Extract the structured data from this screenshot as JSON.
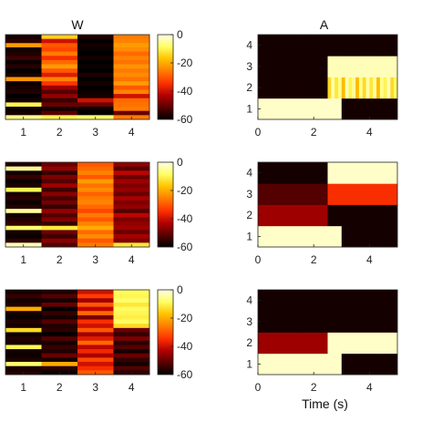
{
  "colors": {
    "colormap": [
      "#000000",
      "#5a0000",
      "#b40000",
      "#ff3200",
      "#ff7d00",
      "#ffc300",
      "#ffff64",
      "#fffde6"
    ]
  },
  "chart_data": [
    {
      "type": "heatmap",
      "name": "W-row-1",
      "title": "W",
      "x_ticks": [
        "1",
        "2",
        "3",
        "4"
      ],
      "cells": [
        [
          -58,
          -15,
          -57,
          -26
        ],
        [
          -56,
          -40,
          -60,
          -25
        ],
        [
          -22,
          -30,
          -58,
          -22
        ],
        [
          -58,
          -32,
          -59,
          -24
        ],
        [
          -57,
          -26,
          -60,
          -28
        ],
        [
          -54,
          -35,
          -58,
          -25
        ],
        [
          -59,
          -28,
          -60,
          -27
        ],
        [
          -56,
          -22,
          -59,
          -23
        ],
        [
          -60,
          -30,
          -60,
          -26
        ],
        [
          -58,
          -38,
          -57,
          -24
        ],
        [
          -23,
          -25,
          -60,
          -27
        ],
        [
          -59,
          -34,
          -58,
          -22
        ],
        [
          -58,
          -45,
          -60,
          -30
        ],
        [
          -57,
          -52,
          -59,
          -25
        ],
        [
          -60,
          -46,
          -58,
          -40
        ],
        [
          -58,
          -55,
          -40,
          -28
        ],
        [
          -10,
          -50,
          -50,
          -27
        ],
        [
          -59,
          -58,
          -59,
          -26
        ],
        [
          -58,
          -52,
          -60,
          -50
        ],
        [
          -6,
          -10,
          -8,
          -26
        ]
      ],
      "colorbar_ticks": [
        "0",
        "-20",
        "-40",
        "-60"
      ],
      "clim": [
        -60,
        0
      ]
    },
    {
      "type": "heatmap",
      "name": "A-row-1",
      "title": "A",
      "x_ticks": [
        "0",
        "2",
        "4"
      ],
      "y_ticks": [
        "1",
        "2",
        "3",
        "4"
      ],
      "xlim": [
        0,
        5
      ],
      "cells": [
        [
          -2,
          -2,
          -2,
          -2,
          -2,
          -2,
          -2,
          -2,
          -2,
          -2,
          -2,
          -2,
          -2,
          -2,
          -2,
          -2,
          -2,
          -2,
          -2,
          -2,
          -2,
          -2,
          -2,
          -2,
          -58,
          -58,
          -58,
          -58,
          -58,
          -58,
          -58,
          -58,
          -58,
          -58,
          -58,
          -58,
          -58,
          -58,
          -58,
          -58
        ],
        [
          -58,
          -58,
          -58,
          -58,
          -58,
          -58,
          -58,
          -58,
          -58,
          -58,
          -58,
          -58,
          -58,
          -58,
          -58,
          -58,
          -58,
          -58,
          -58,
          -58,
          -14,
          -4,
          -12,
          -6,
          -18,
          -3,
          -10,
          -5,
          -18,
          -6,
          -14,
          -4,
          -12,
          -4,
          -18,
          -6,
          -10,
          -3,
          -14,
          -8
        ],
        [
          -58,
          -58,
          -58,
          -58,
          -58,
          -58,
          -58,
          -58,
          -58,
          -58,
          -58,
          -58,
          -58,
          -58,
          -58,
          -58,
          -58,
          -58,
          -58,
          -58,
          -3,
          -3,
          -3,
          -3,
          -3,
          -3,
          -3,
          -3,
          -3,
          -3,
          -3,
          -3,
          -3,
          -3,
          -3,
          -3,
          -3,
          -3,
          -3,
          -3
        ],
        [
          -58,
          -58,
          -58,
          -58,
          -58,
          -58,
          -58,
          -58,
          -58,
          -58,
          -58,
          -58,
          -58,
          -58,
          -58,
          -58,
          -58,
          -58,
          -58,
          -58,
          -58,
          -58,
          -58,
          -58,
          -58,
          -58,
          -58,
          -58,
          -58,
          -58,
          -58,
          -58,
          -58,
          -58,
          -58,
          -58,
          -58,
          -58,
          -58,
          -58
        ]
      ]
    },
    {
      "type": "heatmap",
      "name": "W-row-2",
      "x_ticks": [
        "1",
        "2",
        "3",
        "4"
      ],
      "cells": [
        [
          -57,
          -50,
          -30,
          -46
        ],
        [
          -5,
          -46,
          -28,
          -52
        ],
        [
          -58,
          -55,
          -25,
          -42
        ],
        [
          -55,
          -48,
          -30,
          -50
        ],
        [
          -59,
          -52,
          -22,
          -45
        ],
        [
          -57,
          -45,
          -27,
          -48
        ],
        [
          -10,
          -54,
          -24,
          -46
        ],
        [
          -58,
          -47,
          -29,
          -50
        ],
        [
          -56,
          -53,
          -26,
          -44
        ],
        [
          -59,
          -49,
          -25,
          -48
        ],
        [
          -57,
          -55,
          -28,
          -46
        ],
        [
          -5,
          -46,
          -32,
          -52
        ],
        [
          -58,
          -52,
          -26,
          -42
        ],
        [
          -57,
          -48,
          -30,
          -48
        ],
        [
          -55,
          -55,
          -25,
          -46
        ],
        [
          -8,
          -12,
          -20,
          -45
        ],
        [
          -58,
          -50,
          -28,
          -50
        ],
        [
          -59,
          -54,
          -24,
          -44
        ],
        [
          -56,
          -47,
          -30,
          -48
        ],
        [
          -3,
          -52,
          -26,
          -12
        ]
      ],
      "colorbar_ticks": [
        "0",
        "-20",
        "-40",
        "-60"
      ],
      "clim": [
        -60,
        0
      ]
    },
    {
      "type": "heatmap",
      "name": "A-row-2",
      "x_ticks": [
        "0",
        "2",
        "4"
      ],
      "y_ticks": [
        "1",
        "2",
        "3",
        "4"
      ],
      "xlim": [
        0,
        5
      ],
      "cells": [
        [
          -2,
          -2,
          -2,
          -2,
          -2,
          -2,
          -2,
          -2,
          -2,
          -2,
          -2,
          -2,
          -2,
          -2,
          -2,
          -2,
          -2,
          -2,
          -2,
          -2,
          -2,
          -2,
          -2,
          -2,
          -58,
          -58,
          -58,
          -58,
          -58,
          -58,
          -58,
          -58,
          -58,
          -58,
          -58,
          -58,
          -58,
          -58,
          -58,
          -58
        ],
        [
          -45,
          -45,
          -45,
          -45,
          -45,
          -45,
          -45,
          -45,
          -45,
          -45,
          -45,
          -45,
          -45,
          -45,
          -45,
          -45,
          -45,
          -45,
          -45,
          -45,
          -58,
          -58,
          -58,
          -58,
          -58,
          -58,
          -58,
          -58,
          -58,
          -58,
          -58,
          -58,
          -58,
          -58,
          -58,
          -58,
          -58,
          -58,
          -58,
          -58
        ],
        [
          -52,
          -52,
          -52,
          -52,
          -52,
          -52,
          -52,
          -52,
          -52,
          -52,
          -52,
          -52,
          -52,
          -52,
          -52,
          -52,
          -52,
          -52,
          -52,
          -52,
          -35,
          -35,
          -35,
          -35,
          -35,
          -35,
          -35,
          -35,
          -35,
          -35,
          -35,
          -35,
          -35,
          -35,
          -35,
          -35,
          -35,
          -35,
          -35,
          -35
        ],
        [
          -58,
          -58,
          -58,
          -58,
          -58,
          -58,
          -58,
          -58,
          -58,
          -58,
          -58,
          -58,
          -58,
          -58,
          -58,
          -58,
          -58,
          -58,
          -58,
          -58,
          -2,
          -2,
          -2,
          -2,
          -2,
          -2,
          -2,
          -2,
          -2,
          -2,
          -2,
          -2,
          -2,
          -2,
          -2,
          -2,
          -2,
          -2,
          -2,
          -2
        ]
      ]
    },
    {
      "type": "heatmap",
      "name": "W-row-3",
      "x_ticks": [
        "1",
        "2",
        "3",
        "4"
      ],
      "cells": [
        [
          -58,
          -57,
          -40,
          -9
        ],
        [
          -55,
          -52,
          -33,
          -10
        ],
        [
          -58,
          -58,
          -45,
          -8
        ],
        [
          -57,
          -50,
          -30,
          -12
        ],
        [
          -20,
          -60,
          -42,
          -9
        ],
        [
          -58,
          -55,
          -28,
          -10
        ],
        [
          -59,
          -58,
          -48,
          -11
        ],
        [
          -57,
          -52,
          -35,
          -9
        ],
        [
          -58,
          -57,
          -40,
          -14
        ],
        [
          -14,
          -56,
          -30,
          -50
        ],
        [
          -59,
          -60,
          -45,
          -55
        ],
        [
          -57,
          -52,
          -38,
          -48
        ],
        [
          -58,
          -58,
          -28,
          -56
        ],
        [
          -10,
          -55,
          -42,
          -52
        ],
        [
          -58,
          -57,
          -36,
          -58
        ],
        [
          -59,
          -50,
          -44,
          -50
        ],
        [
          -57,
          -58,
          -32,
          -55
        ],
        [
          -8,
          -20,
          -40,
          -58
        ],
        [
          -58,
          -56,
          -35,
          -52
        ],
        [
          -57,
          -59,
          -30,
          -56
        ]
      ],
      "colorbar_ticks": [
        "0",
        "-20",
        "-40",
        "-60"
      ],
      "clim": [
        -60,
        0
      ]
    },
    {
      "type": "heatmap",
      "name": "A-row-3",
      "x_ticks": [
        "0",
        "2",
        "4"
      ],
      "y_ticks": [
        "1",
        "2",
        "3",
        "4"
      ],
      "xlim": [
        0,
        5
      ],
      "xlabel": "Time (s)",
      "cells": [
        [
          -2,
          -2,
          -2,
          -2,
          -2,
          -2,
          -2,
          -2,
          -2,
          -2,
          -2,
          -2,
          -2,
          -2,
          -2,
          -2,
          -2,
          -2,
          -2,
          -2,
          -2,
          -2,
          -2,
          -2,
          -58,
          -58,
          -58,
          -58,
          -58,
          -58,
          -58,
          -58,
          -58,
          -58,
          -58,
          -58,
          -58,
          -58,
          -58,
          -58
        ],
        [
          -45,
          -45,
          -45,
          -45,
          -45,
          -45,
          -45,
          -45,
          -45,
          -45,
          -45,
          -45,
          -45,
          -45,
          -45,
          -45,
          -45,
          -45,
          -45,
          -45,
          -2,
          -2,
          -2,
          -2,
          -2,
          -2,
          -2,
          -2,
          -2,
          -2,
          -2,
          -2,
          -2,
          -2,
          -2,
          -2,
          -2,
          -2,
          -2,
          -2
        ],
        [
          -58,
          -58,
          -58,
          -58,
          -58,
          -58,
          -58,
          -58,
          -58,
          -58,
          -58,
          -58,
          -58,
          -58,
          -58,
          -58,
          -58,
          -58,
          -58,
          -58,
          -58,
          -58,
          -58,
          -58,
          -58,
          -58,
          -58,
          -58,
          -58,
          -58,
          -58,
          -58,
          -58,
          -58,
          -58,
          -58,
          -58,
          -58,
          -58,
          -58
        ],
        [
          -58,
          -58,
          -58,
          -58,
          -58,
          -58,
          -58,
          -58,
          -58,
          -58,
          -58,
          -58,
          -58,
          -58,
          -58,
          -58,
          -58,
          -58,
          -58,
          -58,
          -58,
          -58,
          -58,
          -58,
          -58,
          -58,
          -58,
          -58,
          -58,
          -58,
          -58,
          -58,
          -58,
          -58,
          -58,
          -58,
          -58,
          -58,
          -58,
          -58
        ]
      ]
    }
  ]
}
